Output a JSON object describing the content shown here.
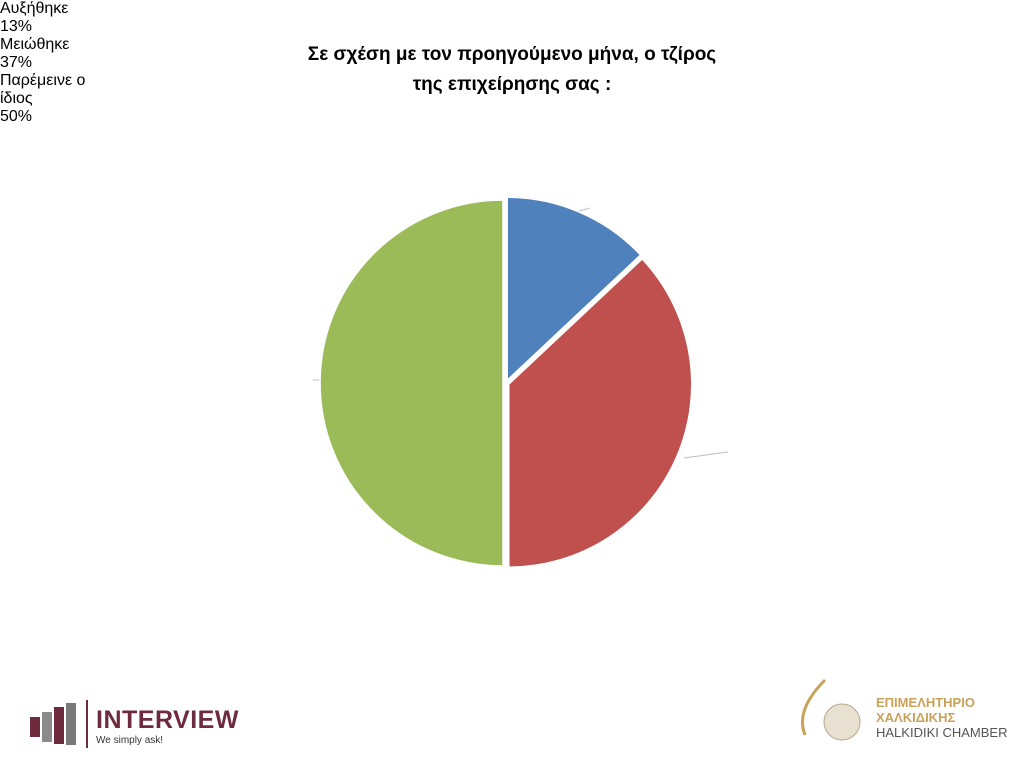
{
  "chart_data": {
    "type": "pie",
    "title": [
      "Σε σχέση με τον προηγούμενο μήνα, ο τζίρος",
      "της επιχείρησης σας :"
    ],
    "categories": [
      "Αυξήθηκε",
      "Μειώθηκε",
      "Παρέμεινε ο ίδιος"
    ],
    "values": [
      13,
      37,
      50
    ],
    "value_labels": [
      "13%",
      "37%",
      "50%"
    ],
    "colors": [
      "#4f81bd",
      "#c0504d",
      "#9bbb59"
    ]
  },
  "logos": {
    "left": {
      "name": "INTERVIEW",
      "tagline": "We simply ask!"
    },
    "right": {
      "line1": "ΕΠΙΜΕΛΗΤΗΡΙΟ",
      "line2": "ΧΑΛΚΙΔΙΚΗΣ",
      "line3": "HALKIDIKI CHAMBER"
    }
  }
}
